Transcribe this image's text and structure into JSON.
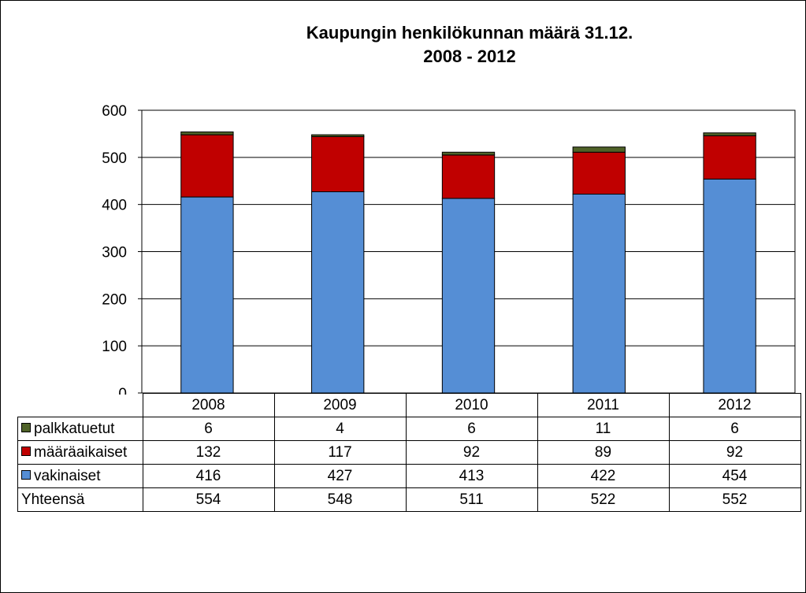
{
  "chart_data": {
    "type": "bar",
    "stacked": true,
    "title": [
      "Kaupungin henkilökunnan määrä 31.12.",
      "2008 - 2012"
    ],
    "categories": [
      "2008",
      "2009",
      "2010",
      "2011",
      "2012"
    ],
    "ylim": [
      0,
      600
    ],
    "yticks": [
      "0",
      "100",
      "200",
      "300",
      "400",
      "500",
      "600"
    ],
    "grid": true,
    "legend": "data-table",
    "series": [
      {
        "name": "vakinaiset",
        "color": "#558ED5",
        "values": [
          416,
          427,
          413,
          422,
          454
        ]
      },
      {
        "name": "määräaikaiset",
        "color": "#C00000",
        "values": [
          132,
          117,
          92,
          89,
          92
        ]
      },
      {
        "name": "palkkatuetut",
        "color": "#4F6228",
        "values": [
          6,
          4,
          6,
          11,
          6
        ]
      }
    ],
    "table": {
      "rows": [
        {
          "label": "palkkatuetut",
          "series": 2,
          "values": [
            "6",
            "4",
            "6",
            "11",
            "6"
          ]
        },
        {
          "label": "määräaikaiset",
          "series": 1,
          "values": [
            "132",
            "117",
            "92",
            "89",
            "92"
          ]
        },
        {
          "label": "vakinaiset",
          "series": 0,
          "values": [
            "416",
            "427",
            "413",
            "422",
            "454"
          ]
        }
      ],
      "total": {
        "label": "Yhteensä",
        "values": [
          "554",
          "548",
          "511",
          "522",
          "552"
        ]
      }
    }
  }
}
